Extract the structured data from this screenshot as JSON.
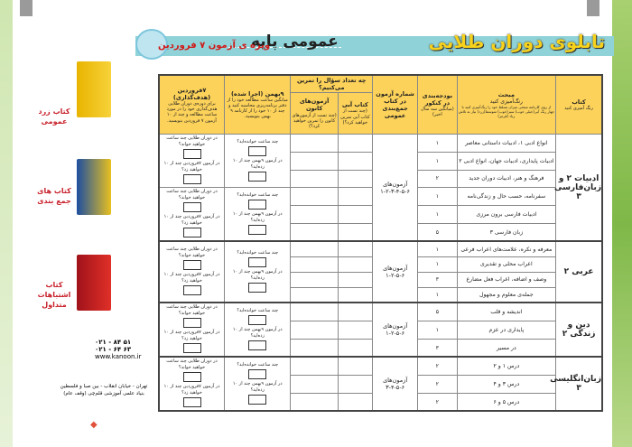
{
  "header": {
    "title": "تابلوی دوران طلایی",
    "subtitle": "عمومی پایه",
    "special": "ویژه ی آزمون ۷ فروردین"
  },
  "columns": {
    "book": {
      "title": "کتاب",
      "sub": "رنگ آمیزی کنید"
    },
    "topic": {
      "title": "مبحث",
      "sub": "رنگ‌آمیزی کنید",
      "note": "از روی کارنامه مبحثی میزان تسلط خود را رنگ‌آمیزی کنید با چهار رنگ آبی(خیلی خوب) سبز(خوب) متوسط(زرد) نیاز به تلاش زیاد (قرمز)"
    },
    "budget": {
      "title": "بودجه‌بندی در کنکور",
      "sub": "(میانگین سه سال اخیر)"
    },
    "exam": {
      "title": "شماره آزمون در کتاب جمع‌بندی عمومی"
    },
    "practice": {
      "title": "چه تعداد سؤال را تمرین می‌کنیم؟"
    },
    "bluebook": {
      "title": "کتاب آبی",
      "sub": "(چند تست از کتاب آبی تمرین خواهید کرد؟)"
    },
    "kanoon": {
      "title": "آزمون‌های کانون",
      "sub": "(چند تست از آزمون‌های کانون را تمرین خواهید کرد؟)"
    },
    "bahman": {
      "title": "۹بهمن (اجرا شده)",
      "sub": "میانگین ساعت مطالعه خود را از دفتر برنامه‌ریزی محاسبه کنید و چند از ۱۰ خود را از کارنامه ۹ بهمن بنویسید."
    },
    "farvardin": {
      "title": "۷فروردین (هدف‌گذاری)",
      "sub": "برای دوره‌ی دوران طلایی هدف‌گذاری خود را در مورد ساعت مطالعه و چند از ۱۰ آزمون ۷ فروردین بنویسید."
    }
  },
  "inputs": {
    "bahman_q1": "چند ساعت خوانده‌اید؟",
    "bahman_q2": "در آزمون ۹بهمن چند از ۱۰ زده‌اید؟",
    "farv_q1": "در دوران طلایی چند ساعت خواهید خواند؟",
    "farv_q2": "در آزمون ۷فروردین چند از ۱۰ خواهید زد؟"
  },
  "subjects": [
    {
      "name": "ادبیات ۲ و زبان‌فارسی ۳",
      "exam_label": "آزمون‌های",
      "exams": "۱-۲-۳-۴-۵-۶",
      "topics": [
        {
          "t": "انواع ادبی ۱، ادبیات داستانی معاصر",
          "b": "۱"
        },
        {
          "t": "ادبیات پایداری، ادبیات جهان، انواع ادبی ۲",
          "b": "۱"
        },
        {
          "t": "فرهنگ و هنر، ادبیات دوران جدید",
          "b": "۲"
        },
        {
          "t": "سفرنامه، حسب حال و زندگی‌نامه",
          "b": "۱"
        },
        {
          "t": "ادبیات فارسی برون مرزی",
          "b": "۱"
        },
        {
          "t": "زبان فارسی ۳",
          "b": "۵"
        }
      ]
    },
    {
      "name": "عربی ۲",
      "exam_label": "آزمون‌های",
      "exams": "۱-۲-۵-۶",
      "topics": [
        {
          "t": "معرفه و نکره، علامت‌های اعراب فرعی",
          "b": "۱"
        },
        {
          "t": "اعراب محلی و تقدیری",
          "b": "۱"
        },
        {
          "t": "وصف و اضافه، اعراب فعل مضارع",
          "b": "۳"
        },
        {
          "t": "جمله‌ی معلوم و مجهول",
          "b": "۱"
        }
      ]
    },
    {
      "name": "دین و زندگی ۲",
      "exam_label": "آزمون‌های",
      "exams": "۱-۲-۵-۶",
      "topics": [
        {
          "t": "اندیشه و قلب",
          "b": "۵"
        },
        {
          "t": "پایداری در عزم",
          "b": "۱"
        },
        {
          "t": "در مسیر",
          "b": "۳"
        }
      ]
    },
    {
      "name": "زبان‌انگلیسی ۳",
      "exam_label": "آزمون‌های",
      "exams": "۳-۴-۵-۶",
      "topics": [
        {
          "t": "درس ۱ و ۲",
          "b": "۲"
        },
        {
          "t": "درس ۳ و ۴",
          "b": "۲"
        },
        {
          "t": "درس ۵ و ۶",
          "b": "۲"
        }
      ]
    }
  ],
  "books": [
    "کتاب زرد عمومی",
    "کتاب های جمع بندی",
    "کتاب اشتباهات متداول"
  ],
  "contact": {
    "phone1": "۰۲۱ - ۸۴ ۵۱",
    "phone2": "۰۲۱ - ۶۴ ۶۳",
    "web": "www.kanoon.ir",
    "address": "تهران - خیابان انقلاب - بین صبا و فلسطین",
    "org": "بنیاد علمی آموزشی قلم‌چی (وقف عام)"
  },
  "colors": {
    "header": "#fcd25a",
    "banner": "#8fd3d8",
    "title": "#f7d21c",
    "accent": "#d01818"
  }
}
